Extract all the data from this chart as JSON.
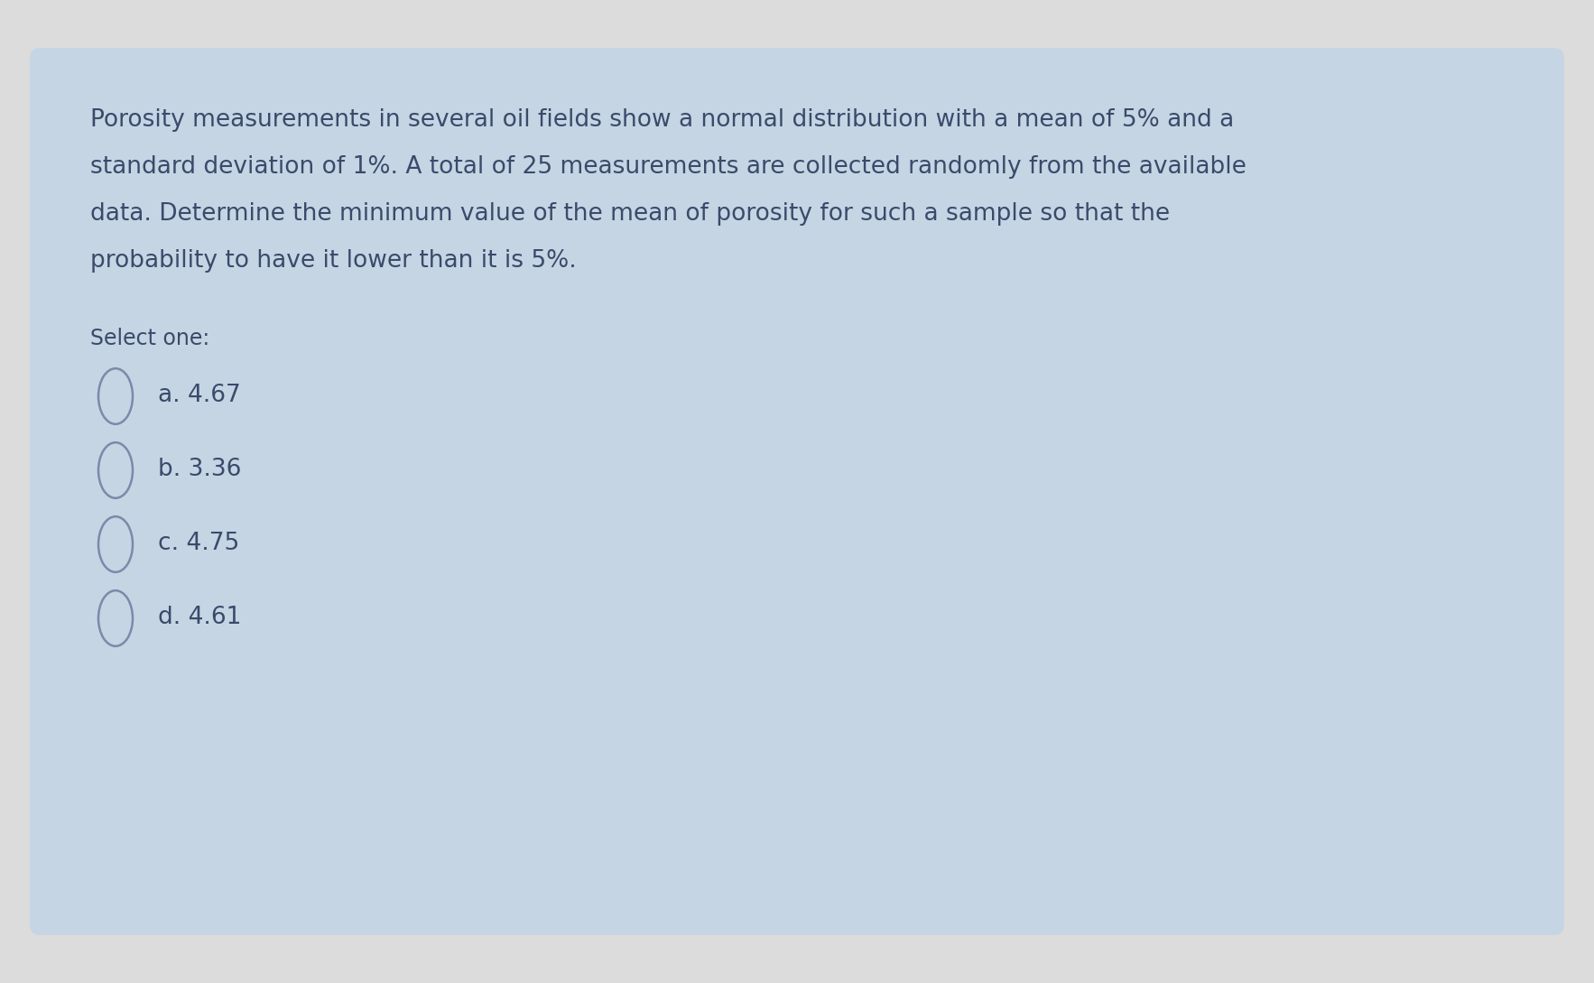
{
  "question_lines": [
    "Porosity measurements in several oil fields show a normal distribution with a mean of 5% and a",
    "standard deviation of 1%. A total of 25 measurements are collected randomly from the available",
    "data. Determine the minimum value of the mean of porosity for such a sample so that the",
    "probability to have it lower than it is 5%."
  ],
  "select_label": "Select one:",
  "options": [
    "a. 4.67",
    "b. 3.36",
    "c. 4.75",
    "d. 4.61"
  ],
  "card_bg": "#c5d5e4",
  "page_bg": "#dcdcdc",
  "text_color": "#3a4a6a",
  "select_color": "#3a4a6a",
  "option_color": "#3a4a6a",
  "circle_edge_color": "#7a8aaa",
  "question_fontsize": 19,
  "select_fontsize": 17,
  "option_fontsize": 19
}
